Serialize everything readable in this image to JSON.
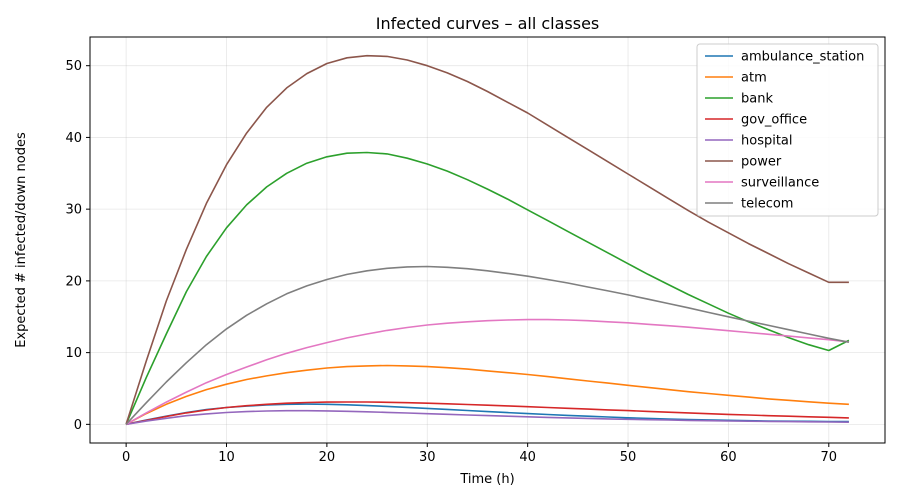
{
  "chart_data": {
    "type": "line",
    "title": "Infected curves – all classes",
    "xlabel": "Time (h)",
    "ylabel": "Expected # infected/down nodes",
    "xlim": [
      -3.6,
      75.6
    ],
    "ylim": [
      -2.6,
      54
    ],
    "x_ticks": [
      0,
      10,
      20,
      30,
      40,
      50,
      60,
      70
    ],
    "y_ticks": [
      0,
      10,
      20,
      30,
      40,
      50
    ],
    "grid": true,
    "legend_position": "top-right",
    "x": [
      0,
      2,
      4,
      6,
      8,
      10,
      12,
      14,
      16,
      18,
      20,
      22,
      24,
      26,
      28,
      30,
      32,
      34,
      36,
      38,
      40,
      42,
      44,
      46,
      48,
      50,
      52,
      54,
      56,
      58,
      60,
      62,
      64,
      66,
      68,
      70,
      72
    ],
    "series": [
      {
        "name": "ambulance_station",
        "color": "#1f77b4",
        "values": [
          0,
          0.6,
          1.15,
          1.65,
          2.05,
          2.35,
          2.55,
          2.7,
          2.8,
          2.82,
          2.8,
          2.72,
          2.62,
          2.5,
          2.36,
          2.22,
          2.08,
          1.93,
          1.78,
          1.64,
          1.5,
          1.37,
          1.25,
          1.13,
          1.02,
          0.92,
          0.83,
          0.75,
          0.68,
          0.62,
          0.56,
          0.51,
          0.47,
          0.44,
          0.42,
          0.4,
          0.38
        ]
      },
      {
        "name": "atm",
        "color": "#ff7f0e",
        "values": [
          0,
          1.5,
          2.8,
          3.9,
          4.85,
          5.6,
          6.25,
          6.75,
          7.2,
          7.55,
          7.85,
          8.05,
          8.15,
          8.2,
          8.15,
          8.05,
          7.9,
          7.7,
          7.45,
          7.2,
          6.95,
          6.65,
          6.35,
          6.05,
          5.75,
          5.45,
          5.15,
          4.85,
          4.55,
          4.3,
          4.05,
          3.8,
          3.55,
          3.35,
          3.15,
          2.95,
          2.8
        ]
      },
      {
        "name": "bank",
        "color": "#2ca02c",
        "values": [
          0,
          6.5,
          12.6,
          18.5,
          23.4,
          27.4,
          30.6,
          33.1,
          35.0,
          36.4,
          37.3,
          37.8,
          37.9,
          37.7,
          37.1,
          36.3,
          35.3,
          34.1,
          32.8,
          31.4,
          29.9,
          28.4,
          26.9,
          25.4,
          23.9,
          22.4,
          20.9,
          19.5,
          18.1,
          16.8,
          15.5,
          14.3,
          13.2,
          12.1,
          11.1,
          10.3,
          11.7
        ]
      },
      {
        "name": "gov_office",
        "color": "#d62728",
        "values": [
          0,
          0.55,
          1.1,
          1.6,
          2.0,
          2.35,
          2.6,
          2.8,
          2.95,
          3.05,
          3.1,
          3.12,
          3.12,
          3.08,
          3.02,
          2.95,
          2.87,
          2.77,
          2.67,
          2.57,
          2.46,
          2.35,
          2.24,
          2.13,
          2.02,
          1.91,
          1.8,
          1.69,
          1.59,
          1.49,
          1.39,
          1.3,
          1.21,
          1.13,
          1.05,
          0.98,
          0.9
        ]
      },
      {
        "name": "hospital",
        "color": "#9467bd",
        "values": [
          0,
          0.45,
          0.85,
          1.2,
          1.45,
          1.65,
          1.78,
          1.86,
          1.9,
          1.9,
          1.87,
          1.82,
          1.75,
          1.67,
          1.58,
          1.49,
          1.4,
          1.31,
          1.22,
          1.13,
          1.05,
          0.97,
          0.9,
          0.83,
          0.76,
          0.7,
          0.65,
          0.6,
          0.55,
          0.51,
          0.47,
          0.44,
          0.41,
          0.38,
          0.35,
          0.33,
          0.3
        ]
      },
      {
        "name": "power",
        "color": "#8c564b",
        "values": [
          0,
          8.8,
          17.2,
          24.4,
          30.8,
          36.2,
          40.6,
          44.2,
          46.9,
          48.9,
          50.3,
          51.1,
          51.4,
          51.3,
          50.8,
          50.0,
          49.0,
          47.8,
          46.4,
          44.9,
          43.4,
          41.7,
          40.0,
          38.3,
          36.6,
          34.9,
          33.2,
          31.5,
          29.8,
          28.2,
          26.7,
          25.2,
          23.8,
          22.4,
          21.1,
          19.8,
          19.8
        ]
      },
      {
        "name": "surveillance",
        "color": "#e377c2",
        "values": [
          0,
          1.6,
          3.1,
          4.5,
          5.8,
          6.95,
          8.0,
          9.0,
          9.9,
          10.7,
          11.4,
          12.05,
          12.6,
          13.1,
          13.5,
          13.85,
          14.1,
          14.3,
          14.45,
          14.55,
          14.6,
          14.6,
          14.55,
          14.45,
          14.3,
          14.15,
          13.95,
          13.75,
          13.55,
          13.3,
          13.05,
          12.8,
          12.55,
          12.3,
          12.05,
          11.8,
          11.5
        ]
      },
      {
        "name": "telecom",
        "color": "#7f7f7f",
        "values": [
          0,
          3.0,
          5.9,
          8.6,
          11.1,
          13.3,
          15.2,
          16.8,
          18.2,
          19.3,
          20.2,
          20.9,
          21.4,
          21.75,
          21.95,
          22.0,
          21.9,
          21.7,
          21.4,
          21.05,
          20.65,
          20.2,
          19.7,
          19.15,
          18.6,
          18.05,
          17.45,
          16.85,
          16.25,
          15.6,
          15.0,
          14.4,
          13.8,
          13.2,
          12.6,
          12.0,
          11.45
        ]
      }
    ]
  }
}
